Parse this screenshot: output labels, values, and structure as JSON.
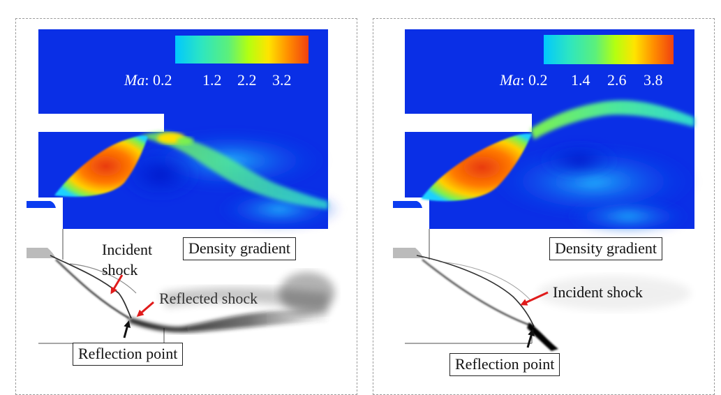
{
  "panels": [
    {
      "colorbar": {
        "var_label": "Ma",
        "separator": ":",
        "ticks": [
          "0.2",
          "1.2",
          "2.2",
          "3.2"
        ]
      },
      "density_label": "Density gradient",
      "annotations": {
        "incident_line1": "Incident",
        "incident_line2": "shock",
        "reflected": "Reflected shock",
        "reflection_point": "Reflection point"
      }
    },
    {
      "colorbar": {
        "var_label": "Ma",
        "separator": ":",
        "ticks": [
          "0.2",
          "1.4",
          "2.6",
          "3.8"
        ]
      },
      "density_label": "Density gradient",
      "annotations": {
        "incident": "Incident shock",
        "reflection_point": "Reflection point"
      }
    }
  ],
  "colors": {
    "field_blue": "#0a2fe6",
    "arrow_red": "#e01b1b",
    "arrow_black": "#111111",
    "panel_border": "#9a9a9a"
  },
  "colormap": [
    "#00c8ff",
    "#2ee6c0",
    "#5cf07a",
    "#b4ff10",
    "#ffe400",
    "#ff8c00",
    "#f04010"
  ]
}
